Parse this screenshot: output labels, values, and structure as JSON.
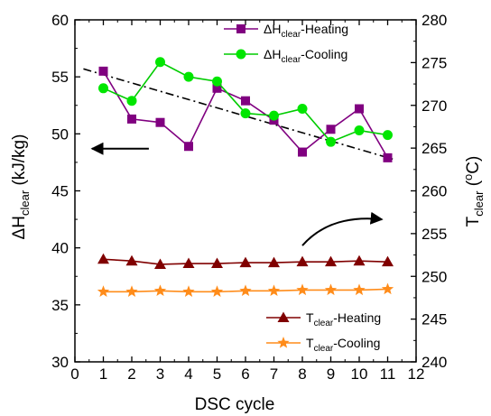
{
  "chart_data": {
    "type": "line",
    "x": [
      1,
      2,
      3,
      4,
      5,
      6,
      7,
      8,
      9,
      10,
      11
    ],
    "xlabel": "DSC cycle",
    "xlim": [
      0,
      12
    ],
    "xticks": [
      "0",
      "1",
      "2",
      "3",
      "4",
      "5",
      "6",
      "7",
      "8",
      "9",
      "10",
      "11",
      "12"
    ],
    "y_left": {
      "label_main": "ΔH",
      "label_sub": "clear",
      "label_unit": " (kJ/kg)",
      "lim": [
        30,
        60
      ],
      "ticks": [
        "30",
        "35",
        "40",
        "45",
        "50",
        "55",
        "60"
      ]
    },
    "y_right": {
      "label_main": "T",
      "label_sub": "clear",
      "label_unit_pre": " (",
      "label_unit_sup": "o",
      "label_unit_post": "C)",
      "lim": [
        240,
        280
      ],
      "ticks": [
        "240",
        "245",
        "250",
        "255",
        "260",
        "265",
        "270",
        "275",
        "280"
      ]
    },
    "series": [
      {
        "axis": "left",
        "legend_main": "ΔH",
        "legend_sub": "clear",
        "legend_suffix": "-Heating",
        "color": "#800080",
        "marker": "square",
        "values": [
          55.5,
          51.3,
          51.0,
          48.9,
          54.0,
          52.9,
          51.2,
          48.4,
          50.4,
          52.2,
          47.9
        ]
      },
      {
        "axis": "left",
        "legend_main": "ΔH",
        "legend_sub": "clear",
        "legend_suffix": "-Cooling",
        "color": "#00e600",
        "line_color": "#00cc00",
        "marker": "circle",
        "values": [
          54.0,
          52.9,
          56.3,
          55.0,
          54.6,
          51.8,
          51.6,
          52.2,
          49.3,
          50.3,
          49.9
        ]
      },
      {
        "axis": "right",
        "legend_main": "T",
        "legend_sub": "clear",
        "legend_suffix": "-Heating",
        "color": "#800000",
        "marker": "triangle",
        "values": [
          252.0,
          251.8,
          251.4,
          251.5,
          251.5,
          251.6,
          251.6,
          251.7,
          251.7,
          251.8,
          251.7
        ]
      },
      {
        "axis": "right",
        "legend_main": "T",
        "legend_sub": "clear",
        "legend_suffix": "-Cooling",
        "color": "#ff8c1a",
        "marker": "star",
        "values": [
          248.2,
          248.2,
          248.3,
          248.2,
          248.2,
          248.3,
          248.3,
          248.4,
          248.4,
          248.4,
          248.5
        ]
      }
    ],
    "trendline": {
      "axis": "left",
      "style": "dash-dot",
      "color": "#000000",
      "start": [
        0.3,
        55.7
      ],
      "end": [
        11.3,
        47.7
      ]
    },
    "annotations": [
      {
        "type": "arrow-left",
        "points_to": "left-axis",
        "near": [
          2.6,
          48.7
        ],
        "tip": [
          0.6,
          48.7
        ]
      },
      {
        "type": "arrow-right-curved",
        "points_to": "right-axis",
        "start": [
          8.0,
          40.2
        ],
        "tip": [
          10.8,
          42.5
        ]
      }
    ],
    "legends": [
      {
        "placement": "top-center",
        "series": [
          0,
          1
        ]
      },
      {
        "placement": "bottom-right",
        "series": [
          2,
          3
        ]
      }
    ],
    "grid": false
  }
}
